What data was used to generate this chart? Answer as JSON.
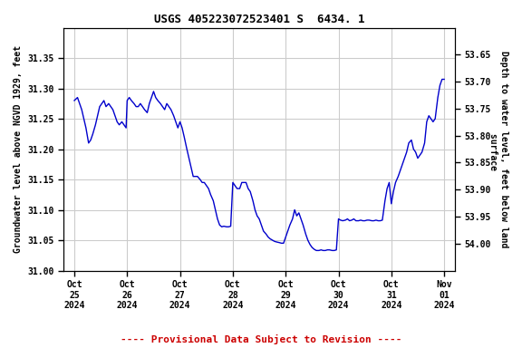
{
  "title": "USGS 405223072523401 S  6434. 1",
  "ylabel_left": "Groundwater level above NGVD 1929, feet",
  "ylabel_right": "Depth to water level, feet below land\n surface",
  "ylim_left": [
    31.0,
    31.4
  ],
  "ylim_right": [
    53.6,
    54.05
  ],
  "yticks_left": [
    31.0,
    31.05,
    31.1,
    31.15,
    31.2,
    31.25,
    31.3,
    31.35
  ],
  "yticks_right": [
    53.65,
    53.7,
    53.75,
    53.8,
    53.85,
    53.9,
    53.95,
    54.0
  ],
  "line_color": "#0000cc",
  "provisional_text": "---- Provisional Data Subject to Revision ----",
  "provisional_color": "#cc0000",
  "background_color": "#ffffff",
  "grid_color": "#cccccc",
  "font_family": "monospace",
  "x_values": [
    0.0,
    0.06,
    0.1,
    0.14,
    0.18,
    0.22,
    0.27,
    0.31,
    0.35,
    0.4,
    0.44,
    0.48,
    0.52,
    0.56,
    0.6,
    0.65,
    0.69,
    0.73,
    0.77,
    0.81,
    0.85,
    0.9,
    0.94,
    0.98,
    1.0,
    1.04,
    1.08,
    1.13,
    1.17,
    1.21,
    1.25,
    1.29,
    1.33,
    1.38,
    1.42,
    1.46,
    1.5,
    1.54,
    1.58,
    1.63,
    1.67,
    1.71,
    1.75,
    1.79,
    1.83,
    1.88,
    1.92,
    1.96,
    2.0,
    2.04,
    2.08,
    2.13,
    2.17,
    2.21,
    2.25,
    2.29,
    2.33,
    2.38,
    2.42,
    2.46,
    2.5,
    2.54,
    2.58,
    2.63,
    2.67,
    2.71,
    2.75,
    2.79,
    2.83,
    2.88,
    2.92,
    2.96,
    3.0,
    3.04,
    3.08,
    3.13,
    3.17,
    3.21,
    3.25,
    3.29,
    3.33,
    3.38,
    3.42,
    3.46,
    3.5,
    3.54,
    3.58,
    3.63,
    3.67,
    3.71,
    3.75,
    3.79,
    3.83,
    3.88,
    3.92,
    3.96,
    4.0,
    4.04,
    4.08,
    4.13,
    4.17,
    4.21,
    4.25,
    4.29,
    4.33,
    4.38,
    4.42,
    4.46,
    4.5,
    4.54,
    4.58,
    4.63,
    4.67,
    4.71,
    4.75,
    4.79,
    4.83,
    4.88,
    4.92,
    4.96,
    5.0,
    5.04,
    5.08,
    5.13,
    5.17,
    5.21,
    5.25,
    5.29,
    5.33,
    5.38,
    5.42,
    5.46,
    5.5,
    5.54,
    5.58,
    5.63,
    5.67,
    5.71,
    5.75,
    5.79,
    5.83,
    5.88,
    5.92,
    5.96,
    6.0,
    6.04,
    6.08,
    6.13,
    6.17,
    6.21,
    6.25,
    6.29,
    6.33,
    6.38,
    6.42,
    6.46,
    6.5,
    6.54,
    6.58,
    6.63,
    6.67,
    6.71,
    6.75,
    6.79,
    6.83,
    6.88,
    6.92,
    6.96,
    7.0
  ],
  "y_values": [
    31.28,
    31.285,
    31.275,
    31.265,
    31.25,
    31.235,
    31.21,
    31.215,
    31.225,
    31.24,
    31.255,
    31.27,
    31.275,
    31.28,
    31.27,
    31.275,
    31.27,
    31.265,
    31.255,
    31.245,
    31.24,
    31.245,
    31.24,
    31.235,
    31.28,
    31.285,
    31.28,
    31.275,
    31.27,
    31.27,
    31.275,
    31.27,
    31.265,
    31.26,
    31.275,
    31.285,
    31.295,
    31.285,
    31.28,
    31.275,
    31.27,
    31.265,
    31.275,
    31.27,
    31.265,
    31.255,
    31.245,
    31.235,
    31.245,
    31.235,
    31.22,
    31.2,
    31.185,
    31.17,
    31.155,
    31.155,
    31.155,
    31.15,
    31.145,
    31.145,
    31.14,
    31.135,
    31.125,
    31.115,
    31.1,
    31.085,
    31.075,
    31.072,
    31.073,
    31.072,
    31.072,
    31.073,
    31.145,
    31.14,
    31.135,
    31.135,
    31.145,
    31.145,
    31.145,
    31.135,
    31.13,
    31.115,
    31.1,
    31.09,
    31.085,
    31.075,
    31.065,
    31.06,
    31.055,
    31.052,
    31.05,
    31.048,
    31.047,
    31.046,
    31.045,
    31.045,
    31.055,
    31.065,
    31.075,
    31.085,
    31.1,
    31.09,
    31.095,
    31.085,
    31.075,
    31.06,
    31.05,
    31.043,
    31.038,
    31.035,
    31.033,
    31.033,
    31.034,
    31.033,
    31.033,
    31.034,
    31.034,
    31.033,
    31.033,
    31.034,
    31.085,
    31.083,
    31.082,
    31.083,
    31.085,
    31.082,
    31.083,
    31.085,
    31.082,
    31.082,
    31.083,
    31.082,
    31.082,
    31.083,
    31.083,
    31.082,
    31.082,
    31.083,
    31.082,
    31.082,
    31.083,
    31.115,
    31.135,
    31.145,
    31.11,
    31.13,
    31.145,
    31.155,
    31.165,
    31.175,
    31.185,
    31.195,
    31.21,
    31.215,
    31.2,
    31.195,
    31.185,
    31.19,
    31.195,
    31.21,
    31.245,
    31.255,
    31.25,
    31.245,
    31.25,
    31.285,
    31.305,
    31.315,
    31.315
  ]
}
